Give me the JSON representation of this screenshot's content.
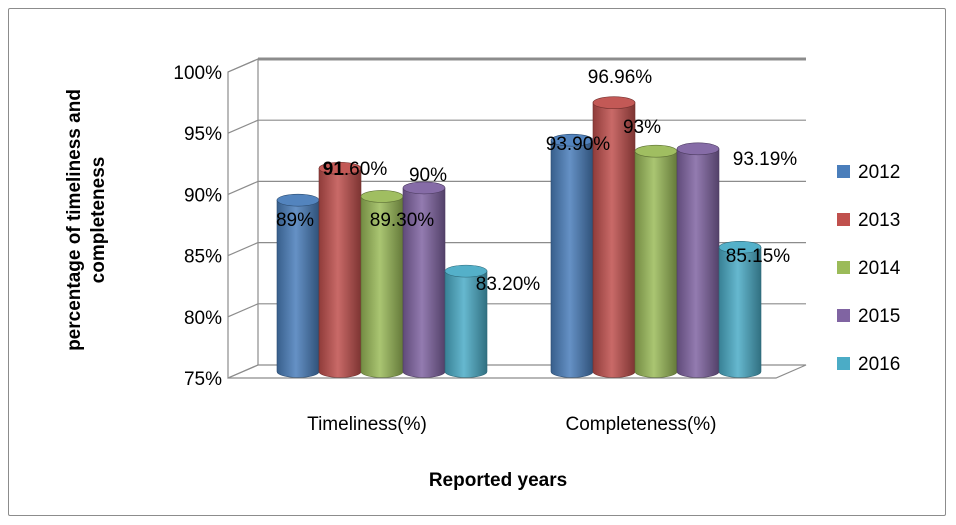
{
  "chart_data": {
    "type": "bar",
    "style": "3d-cylinder",
    "categories": [
      "Timeliness(%)",
      "Completeness(%)"
    ],
    "series": [
      {
        "name": "2012",
        "color": "#4a7ebb",
        "values": [
          89,
          93.9
        ],
        "labels": [
          "89%",
          "93.90%"
        ]
      },
      {
        "name": "2013",
        "color": "#c0504d",
        "values": [
          91.6,
          96.96
        ],
        "labels": [
          "91.60%",
          "96.96%"
        ]
      },
      {
        "name": "2014",
        "color": "#9bbb59",
        "values": [
          89.3,
          93
        ],
        "labels": [
          "89.30%",
          "93%"
        ]
      },
      {
        "name": "2015",
        "color": "#8064a2",
        "values": [
          90,
          93.19
        ],
        "labels": [
          "90%",
          "93.19%"
        ]
      },
      {
        "name": "2016",
        "color": "#4bacc6",
        "values": [
          83.2,
          85.15
        ],
        "labels": [
          "83.20%",
          "85.15%"
        ]
      }
    ],
    "ylabel": "percentage of timeliness and completeness",
    "ylabel_lines": [
      "percentage of timeliness and",
      "completeness"
    ],
    "xlabel": "Reported years",
    "ylim": [
      75,
      100
    ],
    "yticks": [
      "75%",
      "80%",
      "85%",
      "90%",
      "95%",
      "100%"
    ],
    "grid": true,
    "legend": "right"
  }
}
